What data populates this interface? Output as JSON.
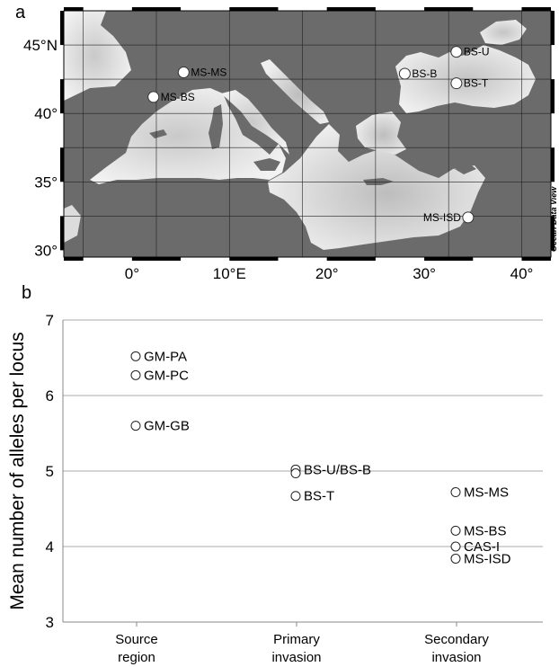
{
  "panel_a": {
    "letter": "a",
    "watermark": "Ocean Data View",
    "lat_ticks": [
      {
        "label": "45°N",
        "lat": 45
      },
      {
        "label": "40°",
        "lat": 40
      },
      {
        "label": "35°",
        "lat": 35
      },
      {
        "label": "30°",
        "lat": 30
      }
    ],
    "lon_ticks": [
      {
        "label": "0°",
        "lon": 0
      },
      {
        "label": "10°E",
        "lon": 10
      },
      {
        "label": "20°",
        "lon": 20
      },
      {
        "label": "30°",
        "lon": 30
      },
      {
        "label": "40°",
        "lon": 40
      }
    ],
    "stations": [
      {
        "name": "MS-MS",
        "lon": 5.3,
        "lat": 43.0
      },
      {
        "name": "MS-BS",
        "lon": 2.2,
        "lat": 41.2
      },
      {
        "name": "BS-U",
        "lon": 33.3,
        "lat": 44.5
      },
      {
        "name": "BS-B",
        "lon": 28.0,
        "lat": 42.9
      },
      {
        "name": "BS-T",
        "lon": 33.3,
        "lat": 42.2
      },
      {
        "name": "MS-ISD",
        "lon": 34.5,
        "lat": 32.4
      }
    ]
  },
  "chart_data": {
    "type": "scatter",
    "panel_letter": "b",
    "ylabel": "Mean number of alleles per locus",
    "ylim": [
      3,
      7
    ],
    "yticks": [
      3,
      4,
      5,
      6,
      7
    ],
    "categories": [
      {
        "line1": "Source",
        "line2": "region"
      },
      {
        "line1": "Primary",
        "line2": "invasion"
      },
      {
        "line1": "Secondary",
        "line2": "invasion"
      }
    ],
    "grid": "horizontal",
    "points": [
      {
        "category": 0,
        "y": 6.52,
        "label": "GM-PA"
      },
      {
        "category": 0,
        "y": 6.27,
        "label": "GM-PC"
      },
      {
        "category": 0,
        "y": 5.6,
        "label": "GM-GB"
      },
      {
        "category": 1,
        "y": 5.02,
        "label": "BS-U/BS-B"
      },
      {
        "category": 1,
        "y": 4.97,
        "label": ""
      },
      {
        "category": 1,
        "y": 4.67,
        "label": "BS-T"
      },
      {
        "category": 2,
        "y": 4.72,
        "label": "MS-MS"
      },
      {
        "category": 2,
        "y": 4.21,
        "label": "MS-BS"
      },
      {
        "category": 2,
        "y": 4.0,
        "label": "CAS-I"
      },
      {
        "category": 2,
        "y": 3.84,
        "label": "MS-ISD"
      }
    ]
  }
}
